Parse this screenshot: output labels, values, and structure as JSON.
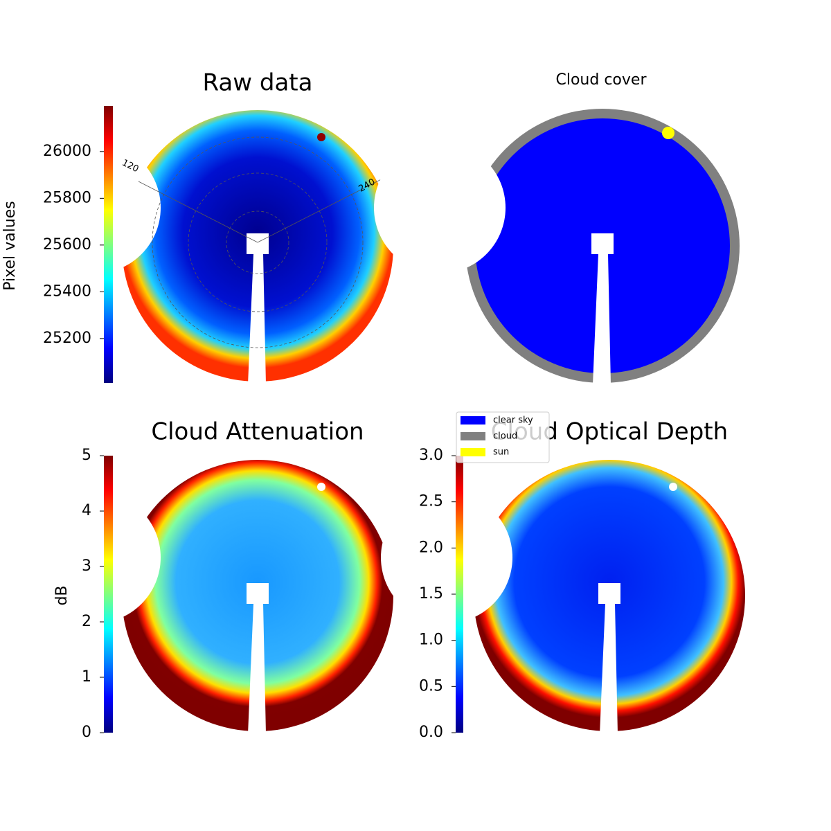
{
  "chart_data": [
    {
      "type": "image",
      "title": "Raw data",
      "colorbar": {
        "label": "Pixel values",
        "ylim": [
          25010,
          26195
        ],
        "yticks": [
          25200,
          25400,
          25600,
          25800,
          26000
        ]
      },
      "polar_labels": [
        "120",
        "240"
      ]
    },
    {
      "type": "image",
      "title": "Cloud cover",
      "legend": [
        {
          "name": "clear sky",
          "color": "#0000ff"
        },
        {
          "name": "cloud",
          "color": "#808080"
        },
        {
          "name": "sun",
          "color": "#ffff00"
        }
      ]
    },
    {
      "type": "image",
      "title": "Cloud Attenuation",
      "colorbar": {
        "label": "dB",
        "ylim": [
          0,
          5
        ],
        "yticks": [
          0,
          1,
          2,
          3,
          4,
          5
        ]
      }
    },
    {
      "type": "image",
      "title": "Cloud Optical Depth",
      "colorbar": {
        "ylim": [
          0,
          3
        ],
        "yticks": [
          {
            "value": 0,
            "label": "0.0"
          },
          0.5,
          {
            "value": 1,
            "label": "1.0"
          },
          1.5,
          {
            "value": 2,
            "label": "2.0"
          },
          2.5,
          {
            "value": 3,
            "label": "3.0"
          }
        ]
      }
    }
  ]
}
